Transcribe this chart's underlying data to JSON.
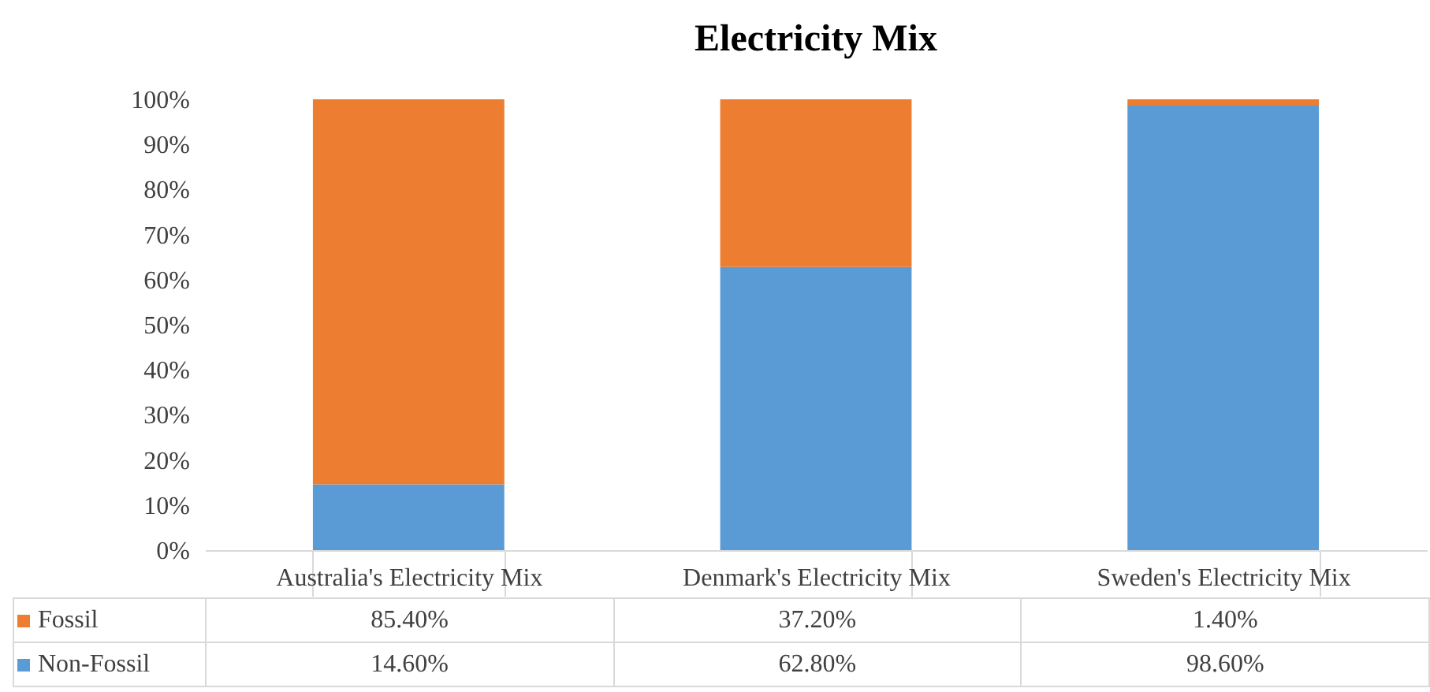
{
  "chart_data": {
    "type": "bar",
    "title": "Electricity Mix",
    "stacked": true,
    "legend": "bottom",
    "categories": [
      "Australia's Electricity Mix",
      "Denmark's Electricity Mix",
      "Sweden's Electricity Mix"
    ],
    "series": [
      {
        "name": "Non-Fossil",
        "color": "#5b9bd5",
        "values": [
          14.6,
          62.8,
          98.6
        ],
        "value_labels": [
          "14.60%",
          "62.80%",
          "98.60%"
        ]
      },
      {
        "name": "Fossil",
        "color": "#ed7d31",
        "values": [
          85.4,
          37.2,
          1.4
        ],
        "value_labels": [
          "85.40%",
          "37.20%",
          "1.40%"
        ]
      }
    ],
    "ylim": [
      0,
      100
    ],
    "yticks": [
      {
        "value": 0,
        "label": "0%"
      },
      {
        "value": 10,
        "label": "10%"
      },
      {
        "value": 20,
        "label": "20%"
      },
      {
        "value": 30,
        "label": "30%"
      },
      {
        "value": 40,
        "label": "40%"
      },
      {
        "value": 50,
        "label": "50%"
      },
      {
        "value": 60,
        "label": "60%"
      },
      {
        "value": 70,
        "label": "70%"
      },
      {
        "value": 80,
        "label": "80%"
      },
      {
        "value": 90,
        "label": "90%"
      },
      {
        "value": 100,
        "label": "100%"
      }
    ]
  }
}
